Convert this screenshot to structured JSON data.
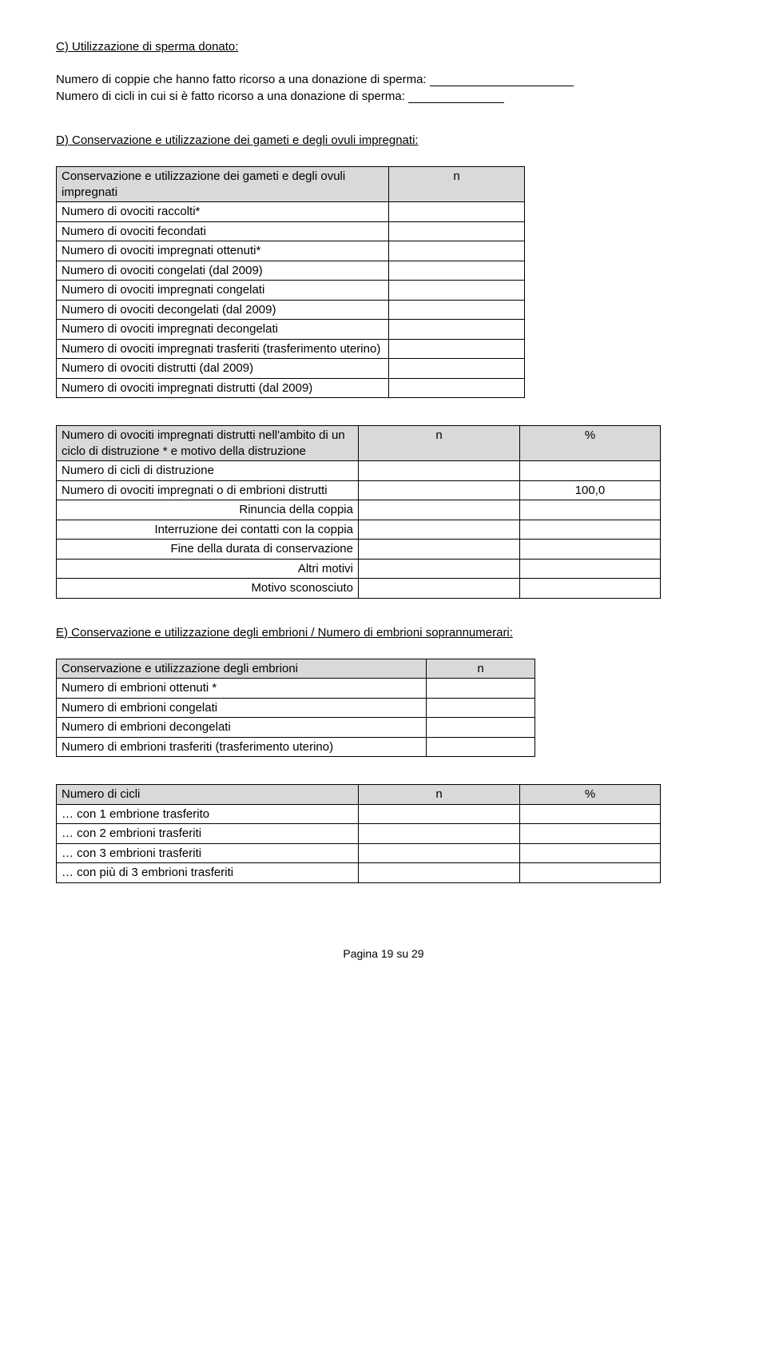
{
  "sectionC": {
    "heading": "C) Utilizzazione di sperma donato:",
    "line1_label": "Numero di coppie che hanno fatto ricorso a una donazione di sperma: ",
    "line2_label": "Numero di cicli in cui si è fatto ricorso a una donazione di sperma: "
  },
  "sectionD": {
    "heading": "D) Conservazione e utilizzazione dei gameti e degli ovuli impregnati:",
    "table": {
      "header_left": "Conservazione e utilizzazione dei gameti e degli ovuli impregnati",
      "header_right": "n",
      "rows": [
        "Numero di ovociti raccolti*",
        "Numero di ovociti fecondati",
        "Numero di ovociti impregnati ottenuti*",
        "Numero di ovociti congelati (dal 2009)",
        "Numero di ovociti impregnati congelati",
        "Numero di ovociti decongelati (dal 2009)",
        "Numero di ovociti impregnati decongelati",
        "Numero di ovociti impregnati trasferiti (trasferimento uterino)",
        "Numero di ovociti distrutti (dal 2009)",
        "Numero di ovociti impregnati distrutti (dal 2009)"
      ]
    }
  },
  "distruzione": {
    "header_left": "Numero di ovociti impregnati distrutti nell'ambito di un ciclo di distruzione * e motivo della distruzione",
    "header_mid": "n",
    "header_right": "%",
    "rows": [
      {
        "label": "Numero di cicli di distruzione",
        "n": "",
        "pct": "",
        "align": "left"
      },
      {
        "label": "Numero di ovociti impregnati o di embrioni distrutti",
        "n": "",
        "pct": "100,0",
        "align": "left"
      },
      {
        "label": "Rinuncia della coppia",
        "n": "",
        "pct": "",
        "align": "right"
      },
      {
        "label": "Interruzione dei contatti con la coppia",
        "n": "",
        "pct": "",
        "align": "right"
      },
      {
        "label": "Fine della durata di conservazione",
        "n": "",
        "pct": "",
        "align": "right"
      },
      {
        "label": "Altri motivi",
        "n": "",
        "pct": "",
        "align": "right"
      },
      {
        "label": "Motivo sconosciuto",
        "n": "",
        "pct": "",
        "align": "right"
      }
    ]
  },
  "sectionE": {
    "heading": "E) Conservazione e utilizzazione degli embrioni / Numero di embrioni soprannumerari:",
    "table": {
      "header_left": "Conservazione e utilizzazione degli embrioni",
      "header_right": "n",
      "rows": [
        "Numero di embrioni ottenuti *",
        "Numero di embrioni congelati",
        "Numero di embrioni decongelati",
        "Numero di embrioni trasferiti (trasferimento uterino)"
      ]
    }
  },
  "cicli": {
    "header_left": "Numero di cicli",
    "header_mid": "n",
    "header_right": "%",
    "rows": [
      "… con 1 embrione trasferito",
      "… con 2 embrioni trasferiti",
      "… con 3 embrioni trasferiti",
      "… con più di 3 embrioni trasferiti"
    ]
  },
  "footer": "Pagina 19 su 29"
}
